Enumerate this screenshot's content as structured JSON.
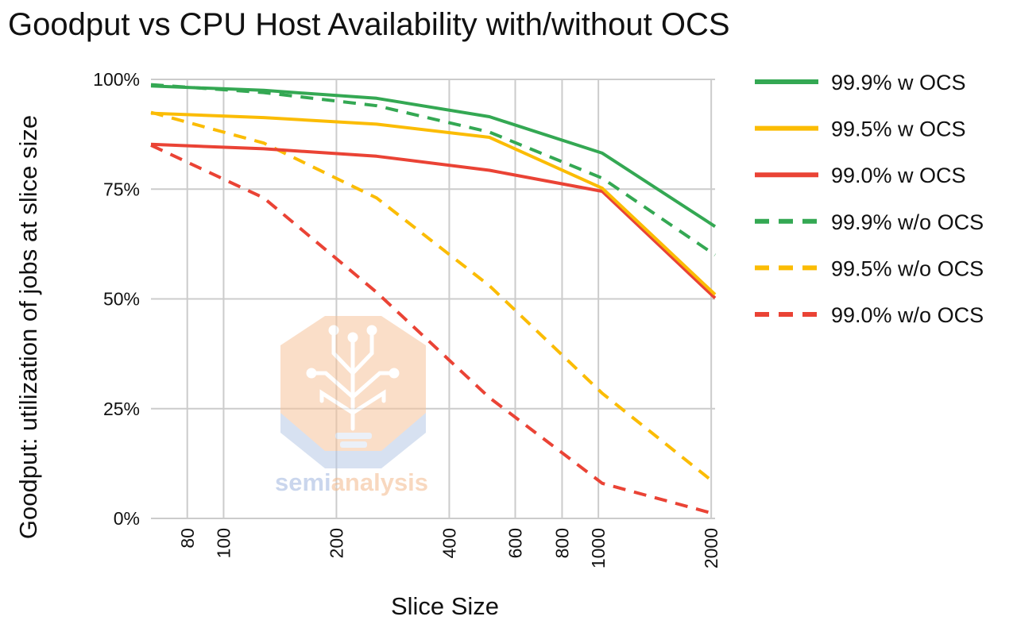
{
  "chart_data": {
    "type": "line",
    "title": "Goodput vs CPU Host Availability with/without OCS",
    "xlabel": "Slice Size",
    "ylabel": "Goodput: utilization of jobs at slice size",
    "x_scale": "log",
    "xlim": [
      64,
      2048
    ],
    "ylim": [
      0,
      100
    ],
    "x_ticks": [
      80,
      100,
      200,
      400,
      600,
      800,
      1000,
      2000
    ],
    "x_tick_labels": [
      "80",
      "100",
      "200",
      "400",
      "600",
      "800",
      "1000",
      "2000"
    ],
    "y_ticks": [
      0,
      25,
      50,
      75,
      100
    ],
    "y_tick_labels": [
      "0%",
      "25%",
      "50%",
      "75%",
      "100%"
    ],
    "grid": true,
    "legend_position": "right",
    "x": [
      64,
      128,
      256,
      512,
      1024,
      2048
    ],
    "series": [
      {
        "name": "99.9% w OCS",
        "color": "#34a853",
        "dashed": false,
        "values": [
          98.5,
          97.5,
          95.7,
          91.5,
          83.2,
          66.5
        ]
      },
      {
        "name": "99.5% w OCS",
        "color": "#fbbc04",
        "dashed": false,
        "values": [
          92.3,
          91.3,
          89.8,
          86.8,
          75.2,
          51.0
        ]
      },
      {
        "name": "99.0% w OCS",
        "color": "#ea4335",
        "dashed": false,
        "values": [
          85.2,
          84.2,
          82.5,
          79.3,
          74.5,
          50.2
        ]
      },
      {
        "name": "99.9% w/o OCS",
        "color": "#34a853",
        "dashed": true,
        "values": [
          98.8,
          97.0,
          94.0,
          88.0,
          77.5,
          60.0
        ]
      },
      {
        "name": "99.5% w/o OCS",
        "color": "#fbbc04",
        "dashed": true,
        "values": [
          92.5,
          85.5,
          73.0,
          53.0,
          28.5,
          8.0
        ]
      },
      {
        "name": "99.0% w/o OCS",
        "color": "#ea4335",
        "dashed": true,
        "values": [
          85.0,
          73.0,
          51.5,
          27.5,
          8.0,
          1.0
        ]
      }
    ]
  },
  "watermark": {
    "brand_part1": "semi",
    "brand_part2": "analysis"
  },
  "colors": {
    "grid": "#cccccc",
    "watermark_orange": "#f6c49c",
    "watermark_blue": "#b8c9e6"
  }
}
